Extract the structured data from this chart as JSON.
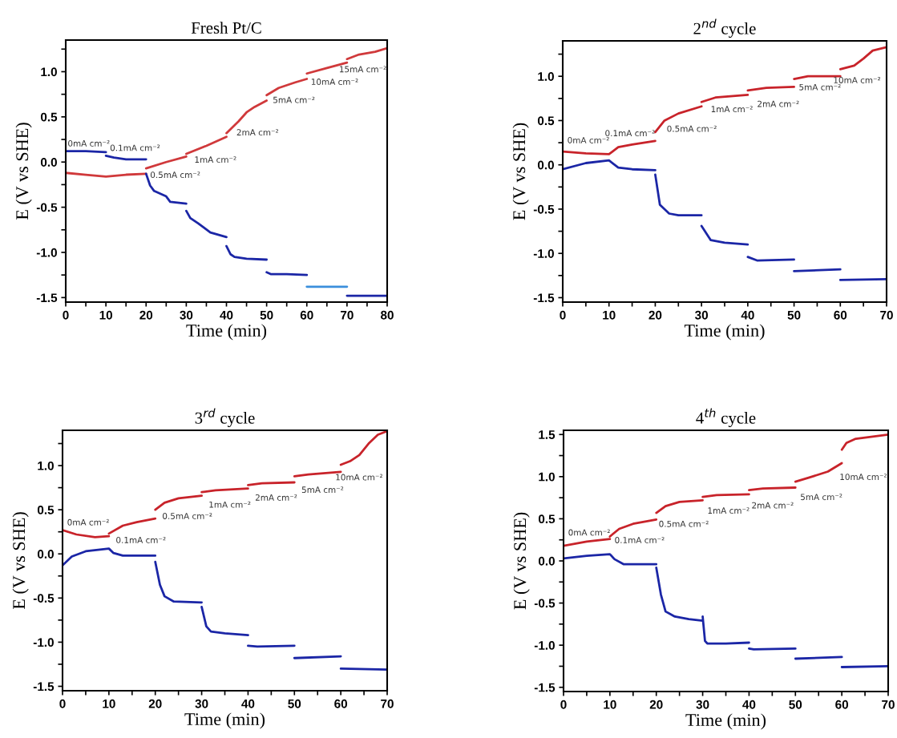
{
  "chart_data": [
    {
      "type": "line",
      "title": "Fresh Pt/C",
      "xlabel": "Time (min)",
      "ylabel": "E (V vs SHE)",
      "xlim": [
        0,
        80
      ],
      "ylim": [
        -1.55,
        1.35
      ],
      "xticks": [
        0,
        {
          "value": 5,
          "label": null
        },
        10,
        {
          "value": 15,
          "label": null
        },
        20,
        {
          "value": 25,
          "label": null
        },
        30,
        {
          "value": 35,
          "label": null
        },
        40,
        {
          "value": 45,
          "label": null
        },
        50,
        {
          "value": 55,
          "label": null
        },
        60,
        {
          "value": 65,
          "label": null
        },
        70,
        {
          "value": 75,
          "label": null
        },
        80
      ],
      "yticks": [
        {
          "value": -1.5,
          "label": "-1.5"
        },
        {
          "value": -1.25,
          "label": null
        },
        {
          "value": -1.0,
          "label": "-1.0"
        },
        {
          "value": -0.75,
          "label": null
        },
        {
          "value": -0.5,
          "label": "-0.5"
        },
        {
          "value": -0.25,
          "label": null
        },
        {
          "value": 0.0,
          "label": "0.0"
        },
        {
          "value": 0.25,
          "label": null
        },
        {
          "value": 0.5,
          "label": "0.5"
        },
        {
          "value": 0.75,
          "label": null
        },
        {
          "value": 1.0,
          "label": "1.0"
        },
        {
          "value": 1.25,
          "label": null
        }
      ],
      "series": [
        {
          "color": "#d0393b",
          "x": [
            0,
            5,
            10,
            15,
            20,
            null,
            20,
            25,
            30,
            null,
            30,
            35,
            40,
            null,
            40,
            43,
            45,
            47,
            50,
            null,
            50,
            53,
            57,
            60,
            null,
            60,
            65,
            70,
            null,
            70,
            73,
            77,
            80
          ],
          "values": [
            -0.12,
            -0.14,
            -0.16,
            -0.14,
            -0.13,
            null,
            -0.07,
            0.0,
            0.06,
            null,
            0.09,
            0.18,
            0.28,
            null,
            0.32,
            0.45,
            0.55,
            0.61,
            0.68,
            null,
            0.74,
            0.82,
            0.88,
            0.92,
            null,
            0.98,
            1.04,
            1.1,
            null,
            1.14,
            1.19,
            1.22,
            1.26
          ]
        },
        {
          "color": "#1b26a6",
          "x": [
            0,
            5,
            10,
            null,
            10,
            12,
            15,
            20,
            null,
            20,
            21,
            22,
            25,
            26,
            30,
            null,
            30,
            31,
            33,
            36,
            40,
            null,
            40,
            41,
            42,
            45,
            50,
            null,
            50,
            51,
            55,
            60,
            null,
            70,
            75,
            80
          ],
          "values": [
            0.12,
            0.12,
            0.11,
            null,
            0.07,
            0.05,
            0.03,
            0.03,
            null,
            -0.13,
            -0.26,
            -0.32,
            -0.38,
            -0.44,
            -0.46,
            null,
            -0.54,
            -0.62,
            -0.68,
            -0.78,
            -0.83,
            null,
            -0.93,
            -1.02,
            -1.05,
            -1.07,
            -1.08,
            null,
            -1.22,
            -1.24,
            -1.24,
            -1.25,
            null,
            -1.48,
            -1.48,
            -1.48
          ]
        },
        {
          "color": "#3b8fdc",
          "x": [
            60,
            65,
            70
          ],
          "values": [
            -1.38,
            -1.38,
            -1.38
          ]
        }
      ],
      "annotations": [
        "0mA cm⁻²",
        "0.1mA cm⁻²",
        "0.5mA cm⁻²",
        "1mA cm⁻²",
        "2mA cm⁻²",
        "5mA cm⁻²",
        "10mA cm⁻²",
        "15mA cm⁻²"
      ]
    },
    {
      "type": "line",
      "title": "2$^{nd}$ cycle",
      "xlabel": "Time (min)",
      "ylabel": "E (V vs SHE)",
      "xlim": [
        0,
        70
      ],
      "ylim": [
        -1.55,
        1.4
      ],
      "xticks": [
        0,
        {
          "value": 5,
          "label": null
        },
        10,
        {
          "value": 15,
          "label": null
        },
        20,
        {
          "value": 25,
          "label": null
        },
        30,
        {
          "value": 35,
          "label": null
        },
        40,
        {
          "value": 45,
          "label": null
        },
        50,
        {
          "value": 55,
          "label": null
        },
        60,
        {
          "value": 65,
          "label": null
        },
        70
      ],
      "yticks": [
        {
          "value": -1.5,
          "label": "-1.5"
        },
        {
          "value": -1.25,
          "label": null
        },
        {
          "value": -1.0,
          "label": "-1.0"
        },
        {
          "value": -0.75,
          "label": null
        },
        {
          "value": -0.5,
          "label": "-0.5"
        },
        {
          "value": -0.25,
          "label": null
        },
        {
          "value": 0.0,
          "label": "0.0"
        },
        {
          "value": 0.25,
          "label": null
        },
        {
          "value": 0.5,
          "label": "0.5"
        },
        {
          "value": 0.75,
          "label": null
        },
        {
          "value": 1.0,
          "label": "1.0"
        },
        {
          "value": 1.25,
          "label": null
        }
      ],
      "series": [
        {
          "color": "#c8232a",
          "x": [
            0,
            5,
            10,
            12,
            15,
            20,
            null,
            20,
            22,
            25,
            30,
            null,
            30,
            33,
            40,
            null,
            40,
            44,
            50,
            null,
            50,
            53,
            60,
            null,
            60,
            63,
            65,
            67,
            70
          ],
          "values": [
            0.15,
            0.13,
            0.12,
            0.2,
            0.23,
            0.27,
            null,
            0.37,
            0.5,
            0.58,
            0.66,
            null,
            0.71,
            0.76,
            0.79,
            null,
            0.84,
            0.87,
            0.88,
            null,
            0.97,
            1.0,
            1.0,
            null,
            1.08,
            1.12,
            1.2,
            1.29,
            1.33
          ]
        },
        {
          "color": "#1b26a6",
          "x": [
            0,
            5,
            10,
            12,
            15,
            20,
            null,
            20,
            21,
            23,
            25,
            30,
            null,
            30,
            32,
            35,
            40,
            null,
            40,
            42,
            50,
            null,
            50,
            60,
            null,
            60,
            70
          ],
          "values": [
            -0.05,
            0.02,
            0.05,
            -0.03,
            -0.05,
            -0.06,
            null,
            -0.11,
            -0.45,
            -0.55,
            -0.57,
            -0.57,
            null,
            -0.69,
            -0.85,
            -0.88,
            -0.9,
            null,
            -1.04,
            -1.08,
            -1.07,
            null,
            -1.2,
            -1.18,
            null,
            -1.3,
            -1.29
          ]
        }
      ],
      "annotations": [
        "0mA cm⁻²",
        "0.1mA cm⁻²",
        "0.5mA cm⁻²",
        "1mA cm⁻²",
        "2mA cm⁻²",
        "5mA cm⁻²",
        "10mA cm⁻²"
      ]
    },
    {
      "type": "line",
      "title": "3$^{rd}$ cycle",
      "xlabel": "Time (min)",
      "ylabel": "E (V vs SHE)",
      "xlim": [
        0,
        70
      ],
      "ylim": [
        -1.55,
        1.4
      ],
      "xticks": [
        0,
        {
          "value": 5,
          "label": null
        },
        10,
        {
          "value": 15,
          "label": null
        },
        20,
        {
          "value": 25,
          "label": null
        },
        30,
        {
          "value": 35,
          "label": null
        },
        40,
        {
          "value": 45,
          "label": null
        },
        50,
        {
          "value": 55,
          "label": null
        },
        60,
        {
          "value": 65,
          "label": null
        },
        70
      ],
      "yticks": [
        {
          "value": -1.5,
          "label": "-1.5"
        },
        {
          "value": -1.25,
          "label": null
        },
        {
          "value": -1.0,
          "label": "-1.0"
        },
        {
          "value": -0.75,
          "label": null
        },
        {
          "value": -0.5,
          "label": "-0.5"
        },
        {
          "value": -0.25,
          "label": null
        },
        {
          "value": 0.0,
          "label": "0.0"
        },
        {
          "value": 0.25,
          "label": null
        },
        {
          "value": 0.5,
          "label": "0.5"
        },
        {
          "value": 0.75,
          "label": null
        },
        {
          "value": 1.0,
          "label": "1.0"
        },
        {
          "value": 1.25,
          "label": null
        }
      ],
      "series": [
        {
          "color": "#c8232a",
          "x": [
            0,
            3,
            7,
            10,
            null,
            10,
            13,
            16,
            20,
            null,
            20,
            22,
            25,
            30,
            null,
            30,
            33,
            40,
            null,
            40,
            43,
            50,
            null,
            50,
            53,
            60,
            null,
            60,
            62,
            64,
            66,
            68,
            70
          ],
          "values": [
            0.27,
            0.22,
            0.19,
            0.2,
            null,
            0.23,
            0.32,
            0.36,
            0.4,
            null,
            0.5,
            0.58,
            0.63,
            0.66,
            null,
            0.7,
            0.72,
            0.74,
            null,
            0.78,
            0.8,
            0.81,
            null,
            0.88,
            0.9,
            0.93,
            null,
            1.01,
            1.05,
            1.12,
            1.25,
            1.35,
            1.39
          ]
        },
        {
          "color": "#1b26a6",
          "x": [
            0,
            2,
            5,
            10,
            11,
            13,
            20,
            null,
            20,
            21,
            22,
            24,
            30,
            null,
            30,
            31,
            32,
            35,
            40,
            null,
            40,
            42,
            50,
            null,
            50,
            60,
            null,
            60,
            70
          ],
          "values": [
            -0.13,
            -0.03,
            0.03,
            0.06,
            0.01,
            -0.02,
            -0.02,
            null,
            -0.09,
            -0.35,
            -0.48,
            -0.54,
            -0.55,
            null,
            -0.6,
            -0.82,
            -0.88,
            -0.9,
            -0.92,
            null,
            -1.04,
            -1.05,
            -1.04,
            null,
            -1.18,
            -1.16,
            null,
            -1.3,
            -1.31
          ]
        }
      ],
      "annotations": [
        "0mA cm⁻²",
        "0.1mA cm⁻²",
        "0.5mA cm⁻²",
        "1mA cm⁻²",
        "2mA cm⁻²",
        "5mA cm⁻²",
        "10mA cm⁻²"
      ]
    },
    {
      "type": "line",
      "title": "4$^{th}$ cycle",
      "xlabel": "Time (min)",
      "ylabel": "E (V vs SHE)",
      "xlim": [
        0,
        70
      ],
      "ylim": [
        -1.55,
        1.55
      ],
      "xticks": [
        0,
        {
          "value": 5,
          "label": null
        },
        10,
        {
          "value": 15,
          "label": null
        },
        20,
        {
          "value": 25,
          "label": null
        },
        30,
        {
          "value": 35,
          "label": null
        },
        40,
        {
          "value": 45,
          "label": null
        },
        50,
        {
          "value": 55,
          "label": null
        },
        60,
        {
          "value": 65,
          "label": null
        },
        70
      ],
      "yticks": [
        {
          "value": -1.5,
          "label": "-1.5"
        },
        {
          "value": -1.25,
          "label": null
        },
        {
          "value": -1.0,
          "label": "-1.0"
        },
        {
          "value": -0.75,
          "label": null
        },
        {
          "value": -0.5,
          "label": "-0.5"
        },
        {
          "value": -0.25,
          "label": null
        },
        {
          "value": 0.0,
          "label": "0.0"
        },
        {
          "value": 0.25,
          "label": null
        },
        {
          "value": 0.5,
          "label": "0.5"
        },
        {
          "value": 0.75,
          "label": null
        },
        {
          "value": 1.0,
          "label": "1.0"
        },
        {
          "value": 1.25,
          "label": null
        },
        {
          "value": 1.5,
          "label": "1.5"
        }
      ],
      "series": [
        {
          "color": "#c8232a",
          "x": [
            0,
            5,
            10,
            null,
            10,
            12,
            15,
            20,
            null,
            20,
            22,
            25,
            30,
            null,
            30,
            33,
            40,
            null,
            40,
            43,
            50,
            null,
            50,
            53,
            57,
            60,
            null,
            60,
            61,
            63,
            70
          ],
          "values": [
            0.18,
            0.23,
            0.26,
            null,
            0.29,
            0.38,
            0.44,
            0.49,
            null,
            0.57,
            0.65,
            0.7,
            0.72,
            null,
            0.76,
            0.78,
            0.79,
            null,
            0.84,
            0.86,
            0.87,
            null,
            0.94,
            0.99,
            1.06,
            1.16,
            null,
            1.32,
            1.4,
            1.45,
            1.5
          ]
        },
        {
          "color": "#1b26a6",
          "x": [
            0,
            5,
            10,
            11,
            13,
            20,
            null,
            20,
            21,
            22,
            24,
            27,
            30,
            null,
            30,
            30.5,
            31,
            35,
            40,
            null,
            40,
            41,
            50,
            null,
            50,
            60,
            null,
            60,
            70
          ],
          "values": [
            0.03,
            0.06,
            0.08,
            0.02,
            -0.04,
            -0.04,
            null,
            -0.08,
            -0.4,
            -0.6,
            -0.66,
            -0.69,
            -0.71,
            null,
            -0.66,
            -0.95,
            -0.98,
            -0.98,
            -0.97,
            null,
            -1.04,
            -1.05,
            -1.04,
            null,
            -1.16,
            -1.14,
            null,
            -1.26,
            -1.25
          ]
        }
      ],
      "annotations": [
        "0mA cm⁻²",
        "0.1mA cm⁻²",
        "0.5mA cm⁻²",
        "1mA cm⁻²",
        "2mA cm⁻²",
        "5mA cm⁻²",
        "10mA cm⁻²"
      ]
    }
  ]
}
